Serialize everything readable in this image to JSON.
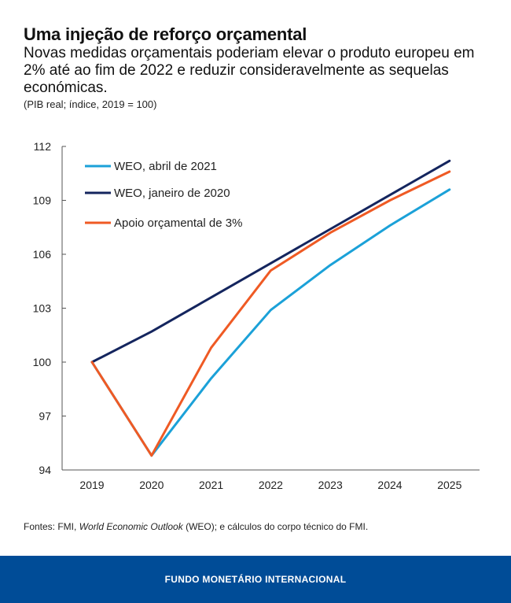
{
  "title": "Uma injeção de reforço orçamental",
  "subtitle": "Novas medidas orçamentais poderiam elevar o produto europeu em 2% até ao fim de 2022 e reduzir consideravelmente as sequelas económicas.",
  "unit_note": "(PIB real; índice, 2019 = 100)",
  "source": {
    "prefix": "Fontes: FMI, ",
    "italic": "World Economic Outlook",
    "suffix": " (WEO); e cálculos do corpo técnico do FMI."
  },
  "footer": "FUNDO MONETÁRIO INTERNACIONAL",
  "chart_data": {
    "type": "line",
    "title": "Uma injeção de reforço orçamental",
    "xlabel": "",
    "ylabel": "PIB real; índice, 2019 = 100",
    "x": [
      "2019",
      "2020",
      "2021",
      "2022",
      "2023",
      "2024",
      "2025"
    ],
    "ylim": [
      94,
      112
    ],
    "yticks": [
      94,
      97,
      100,
      103,
      106,
      109,
      112
    ],
    "grid": false,
    "legend": "top-left",
    "series": [
      {
        "name": "WEO, abril de 2021",
        "color": "#1ba1d8",
        "values": [
          100,
          94.8,
          99.1,
          102.9,
          105.4,
          107.6,
          109.6
        ]
      },
      {
        "name": "WEO, janeiro de 2020",
        "color": "#14255e",
        "values": [
          100,
          101.7,
          103.6,
          105.5,
          107.4,
          109.3,
          111.2
        ]
      },
      {
        "name": "Apoio orçamental de 3%",
        "color": "#ef5a24",
        "values": [
          100,
          94.8,
          100.8,
          105.1,
          107.2,
          109.0,
          110.6
        ]
      }
    ]
  }
}
